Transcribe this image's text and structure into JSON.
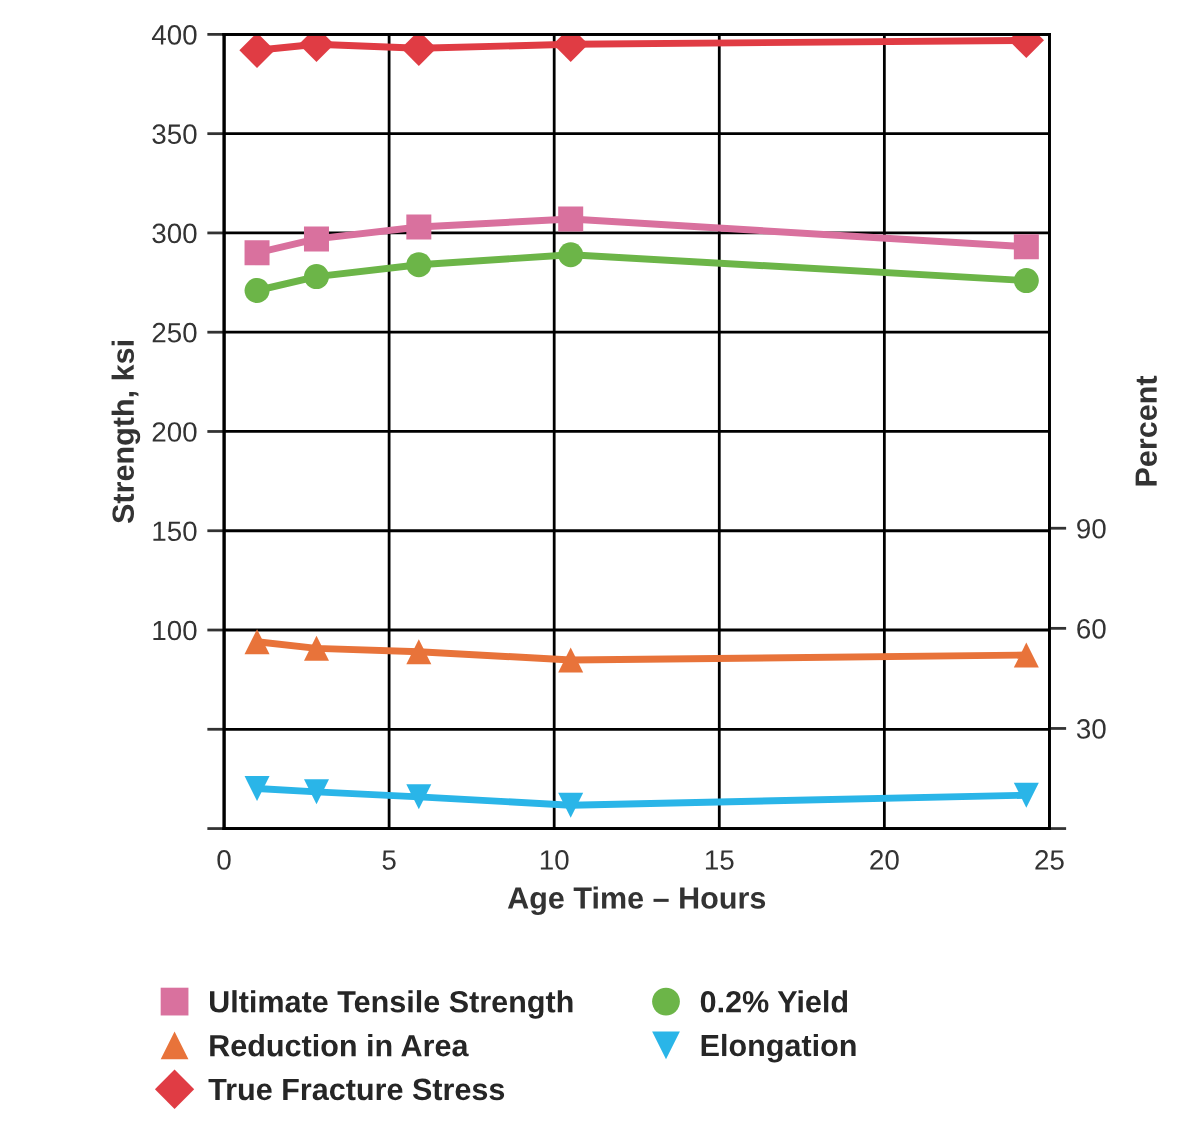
{
  "chart_data": {
    "type": "line",
    "xlabel": "Age Time – Hours",
    "ylabel": "Strength, ksi",
    "y2label": "Percent",
    "x": [
      1,
      2.8,
      5.9,
      10.5,
      24.3
    ],
    "xlim": [
      0,
      25
    ],
    "xticks": [
      0,
      5,
      10,
      15,
      20,
      25
    ],
    "ylim": [
      0,
      400
    ],
    "yticks": [
      {
        "value": 0,
        "label": null
      },
      {
        "value": 50,
        "label": null
      },
      100,
      150,
      200,
      250,
      300,
      350,
      400
    ],
    "y2lim": [
      0,
      238
    ],
    "y2ticks": [
      {
        "value": 0,
        "label": null
      },
      30,
      60,
      90
    ],
    "grid": true,
    "legend": "bottom",
    "series": [
      {
        "name": "Ultimate Tensile Strength",
        "color": "#d9719e",
        "marker": "square",
        "values": [
          290,
          297,
          303,
          307,
          293
        ]
      },
      {
        "name": "Reduction in Area",
        "color": "#e8733a",
        "marker": "triangle",
        "axis": "y2",
        "values": [
          56,
          54,
          53,
          50.5,
          52
        ]
      },
      {
        "name": "True Fracture Stress",
        "color": "#e03c44",
        "marker": "diamond",
        "values": [
          392,
          395,
          393,
          395,
          397
        ]
      },
      {
        "name": "0.2% Yield",
        "color": "#6cb548",
        "marker": "circle",
        "values": [
          271,
          278,
          284,
          289,
          276
        ]
      },
      {
        "name": "Elongation",
        "color": "#2ab5e8",
        "marker": "triangle_down",
        "axis": "y2",
        "values": [
          12,
          11,
          9.5,
          7,
          10
        ]
      }
    ]
  }
}
